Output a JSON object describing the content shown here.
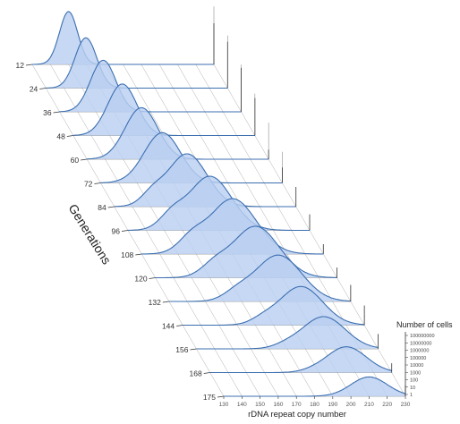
{
  "chart_data": {
    "type": "area",
    "style": "3d-waterfall",
    "xlabel": "rDNA repeat copy number",
    "zlabel": "Generations",
    "ylabel": "Number of cells",
    "x_ticks": [
      130,
      140,
      150,
      160,
      170,
      180,
      190,
      200,
      210,
      220,
      230
    ],
    "x_tick_labels": [
      "130",
      "140",
      "150",
      "160",
      "170",
      "180",
      "190",
      "200",
      "210",
      "220",
      "230"
    ],
    "y_ticks": [
      "100000000",
      "10000000",
      "1000000",
      "100000",
      "10000",
      "1000",
      "100",
      "10",
      "1"
    ],
    "generation_labels": [
      "12",
      "24",
      "36",
      "48",
      "60",
      "72",
      "84",
      "96",
      "108",
      "120",
      "132",
      "144",
      "156",
      "168",
      "175"
    ],
    "series": [
      {
        "generation": 12,
        "peak": 150,
        "sigma": 5,
        "height": 0.82,
        "shoulder": 0
      },
      {
        "generation": 24,
        "peak": 152,
        "sigma": 6,
        "height": 0.78,
        "shoulder": 0
      },
      {
        "generation": 36,
        "peak": 154,
        "sigma": 7,
        "height": 0.8,
        "shoulder": 0
      },
      {
        "generation": 48,
        "peak": 157,
        "sigma": 8,
        "height": 0.8,
        "shoulder": 0
      },
      {
        "generation": 60,
        "peak": 160,
        "sigma": 9,
        "height": 0.8,
        "shoulder": 0
      },
      {
        "generation": 72,
        "peak": 164,
        "sigma": 10,
        "height": 0.78,
        "shoulder": 0
      },
      {
        "generation": 84,
        "peak": 170,
        "sigma": 11,
        "height": 0.82,
        "shoulder": 0.25
      },
      {
        "generation": 96,
        "peak": 175,
        "sigma": 12,
        "height": 0.84,
        "shoulder": 0.3
      },
      {
        "generation": 108,
        "peak": 180,
        "sigma": 13,
        "height": 0.86,
        "shoulder": 0.3
      },
      {
        "generation": 120,
        "peak": 185,
        "sigma": 13,
        "height": 0.8,
        "shoulder": 0.25
      },
      {
        "generation": 132,
        "peak": 190,
        "sigma": 13,
        "height": 0.72,
        "shoulder": 0.2
      },
      {
        "generation": 144,
        "peak": 195,
        "sigma": 12,
        "height": 0.6,
        "shoulder": 0.15
      },
      {
        "generation": 156,
        "peak": 200,
        "sigma": 12,
        "height": 0.5,
        "shoulder": 0.1
      },
      {
        "generation": 168,
        "peak": 205,
        "sigma": 11,
        "height": 0.4,
        "shoulder": 0.05
      },
      {
        "generation": 175,
        "peak": 210,
        "sigma": 10,
        "height": 0.3,
        "shoulder": 0
      }
    ],
    "grid": true,
    "colors": {
      "fill": "#b9cff2",
      "stroke": "#3c6fb0",
      "axis": "#444444",
      "grid": "#999999"
    }
  }
}
